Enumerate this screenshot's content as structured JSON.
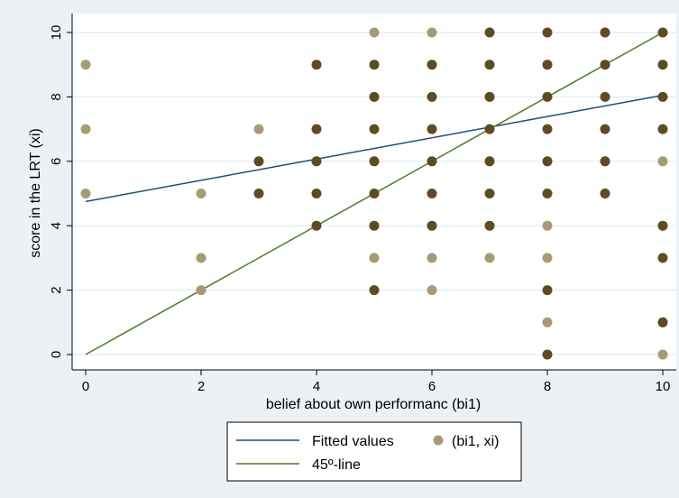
{
  "chart_data": {
    "type": "scatter",
    "xlabel": "belief about own performanc (bi1)",
    "ylabel": "score in the LRT (xi)",
    "xlim": [
      0,
      10
    ],
    "ylim": [
      0,
      10
    ],
    "xticks": [
      0,
      2,
      4,
      6,
      8,
      10
    ],
    "yticks": [
      0,
      2,
      4,
      6,
      8,
      10
    ],
    "grid": true,
    "legend_position": "bottom",
    "colors": {
      "plot_background": "#ffffff",
      "page_background": "#ebf1f5",
      "gridline": "#e4ebee",
      "fitted_line": "#1b4f72",
      "diagonal_line": "#4e7a26",
      "marker_dark": "#5e4a24",
      "marker_light": "#a89a76"
    },
    "series": [
      {
        "name": "(bi1, xi)",
        "kind": "scatter",
        "points": [
          {
            "x": 0,
            "y": 9,
            "dark": false
          },
          {
            "x": 0,
            "y": 7,
            "dark": false
          },
          {
            "x": 0,
            "y": 5,
            "dark": false
          },
          {
            "x": 2,
            "y": 5,
            "dark": false
          },
          {
            "x": 2,
            "y": 3,
            "dark": false
          },
          {
            "x": 2,
            "y": 2,
            "dark": false
          },
          {
            "x": 3,
            "y": 7,
            "dark": false
          },
          {
            "x": 3,
            "y": 6,
            "dark": true
          },
          {
            "x": 3,
            "y": 5,
            "dark": true
          },
          {
            "x": 4,
            "y": 9,
            "dark": true
          },
          {
            "x": 4,
            "y": 7,
            "dark": true
          },
          {
            "x": 4,
            "y": 6,
            "dark": true
          },
          {
            "x": 4,
            "y": 5,
            "dark": true
          },
          {
            "x": 4,
            "y": 4,
            "dark": true
          },
          {
            "x": 5,
            "y": 10,
            "dark": false
          },
          {
            "x": 5,
            "y": 9,
            "dark": true
          },
          {
            "x": 5,
            "y": 8,
            "dark": true
          },
          {
            "x": 5,
            "y": 7,
            "dark": true
          },
          {
            "x": 5,
            "y": 6,
            "dark": true
          },
          {
            "x": 5,
            "y": 5,
            "dark": true
          },
          {
            "x": 5,
            "y": 4,
            "dark": true
          },
          {
            "x": 5,
            "y": 3,
            "dark": false
          },
          {
            "x": 5,
            "y": 2,
            "dark": true
          },
          {
            "x": 6,
            "y": 10,
            "dark": false
          },
          {
            "x": 6,
            "y": 9,
            "dark": true
          },
          {
            "x": 6,
            "y": 8,
            "dark": true
          },
          {
            "x": 6,
            "y": 7,
            "dark": true
          },
          {
            "x": 6,
            "y": 6,
            "dark": true
          },
          {
            "x": 6,
            "y": 5,
            "dark": true
          },
          {
            "x": 6,
            "y": 4,
            "dark": true
          },
          {
            "x": 6,
            "y": 3,
            "dark": false
          },
          {
            "x": 6,
            "y": 2,
            "dark": false
          },
          {
            "x": 7,
            "y": 10,
            "dark": true
          },
          {
            "x": 7,
            "y": 9,
            "dark": true
          },
          {
            "x": 7,
            "y": 8,
            "dark": true
          },
          {
            "x": 7,
            "y": 7,
            "dark": true
          },
          {
            "x": 7,
            "y": 6,
            "dark": true
          },
          {
            "x": 7,
            "y": 5,
            "dark": true
          },
          {
            "x": 7,
            "y": 4,
            "dark": true
          },
          {
            "x": 7,
            "y": 3,
            "dark": false
          },
          {
            "x": 8,
            "y": 10,
            "dark": true
          },
          {
            "x": 8,
            "y": 9,
            "dark": true
          },
          {
            "x": 8,
            "y": 8,
            "dark": true
          },
          {
            "x": 8,
            "y": 7,
            "dark": true
          },
          {
            "x": 8,
            "y": 6,
            "dark": true
          },
          {
            "x": 8,
            "y": 5,
            "dark": true
          },
          {
            "x": 8,
            "y": 4,
            "dark": false
          },
          {
            "x": 8,
            "y": 3,
            "dark": false
          },
          {
            "x": 8,
            "y": 2,
            "dark": true
          },
          {
            "x": 8,
            "y": 1,
            "dark": false
          },
          {
            "x": 8,
            "y": 0,
            "dark": true
          },
          {
            "x": 9,
            "y": 10,
            "dark": true
          },
          {
            "x": 9,
            "y": 9,
            "dark": true
          },
          {
            "x": 9,
            "y": 8,
            "dark": true
          },
          {
            "x": 9,
            "y": 7,
            "dark": true
          },
          {
            "x": 9,
            "y": 6,
            "dark": true
          },
          {
            "x": 9,
            "y": 5,
            "dark": true
          },
          {
            "x": 10,
            "y": 10,
            "dark": true
          },
          {
            "x": 10,
            "y": 9,
            "dark": true
          },
          {
            "x": 10,
            "y": 8,
            "dark": true
          },
          {
            "x": 10,
            "y": 7,
            "dark": true
          },
          {
            "x": 10,
            "y": 6,
            "dark": false
          },
          {
            "x": 10,
            "y": 4,
            "dark": true
          },
          {
            "x": 10,
            "y": 3,
            "dark": true
          },
          {
            "x": 10,
            "y": 1,
            "dark": true
          },
          {
            "x": 10,
            "y": 0,
            "dark": false
          }
        ]
      },
      {
        "name": "Fitted values",
        "kind": "line",
        "x": [
          0,
          10
        ],
        "y": [
          4.75,
          8.05
        ]
      },
      {
        "name": "45º-line",
        "kind": "line",
        "x": [
          0,
          10
        ],
        "y": [
          0,
          10
        ]
      }
    ]
  }
}
